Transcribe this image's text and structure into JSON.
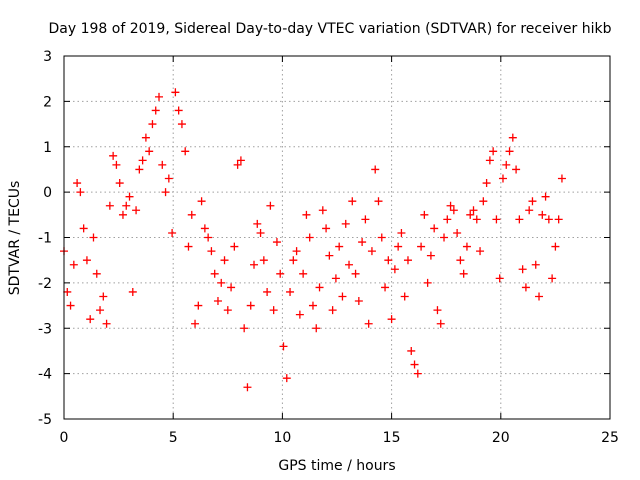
{
  "chart_data": {
    "type": "scatter",
    "title": "Day 198 of 2019, Sidereal Day-to-day VTEC variation (SDTVAR) for receiver hikb",
    "xlabel": "GPS time / hours",
    "ylabel": "SDTVAR / TECUs",
    "xlim": [
      0,
      25
    ],
    "ylim": [
      -5,
      3
    ],
    "xticks": [
      "0",
      "5",
      "10",
      "15",
      "20",
      "25"
    ],
    "yticks": [
      "-5",
      "-4",
      "-3",
      "-2",
      "-1",
      "0",
      "1",
      "2",
      "3"
    ],
    "grid": true,
    "marker": "+",
    "color": "#ff0000",
    "series": [
      {
        "name": "SDTVAR",
        "x": [
          0.0,
          0.15,
          0.3,
          0.45,
          0.6,
          0.75,
          0.9,
          1.05,
          1.2,
          1.35,
          1.5,
          1.65,
          1.8,
          1.95,
          2.1,
          2.25,
          2.4,
          2.55,
          2.7,
          2.85,
          3.0,
          3.15,
          3.3,
          3.45,
          3.6,
          3.75,
          3.9,
          4.05,
          4.2,
          4.35,
          4.5,
          4.65,
          4.8,
          4.95,
          5.1,
          5.25,
          5.4,
          5.55,
          5.7,
          5.85,
          6.0,
          6.15,
          6.3,
          6.45,
          6.6,
          6.75,
          6.9,
          7.05,
          7.2,
          7.35,
          7.5,
          7.65,
          7.8,
          7.95,
          8.1,
          8.25,
          8.4,
          8.55,
          8.7,
          8.85,
          9.0,
          9.15,
          9.3,
          9.45,
          9.6,
          9.75,
          9.9,
          10.05,
          10.2,
          10.35,
          10.5,
          10.65,
          10.8,
          10.95,
          11.1,
          11.25,
          11.4,
          11.55,
          11.7,
          11.85,
          12.0,
          12.15,
          12.3,
          12.45,
          12.6,
          12.75,
          12.9,
          13.05,
          13.2,
          13.35,
          13.5,
          13.65,
          13.8,
          13.95,
          14.1,
          14.25,
          14.4,
          14.55,
          14.7,
          14.85,
          15.0,
          15.15,
          15.3,
          15.45,
          15.6,
          15.75,
          15.9,
          16.05,
          16.2,
          16.35,
          16.5,
          16.65,
          16.8,
          16.95,
          17.1,
          17.25,
          17.4,
          17.55,
          17.7,
          17.85,
          18.0,
          18.15,
          18.3,
          18.45,
          18.6,
          18.75,
          18.9,
          19.05,
          19.2,
          19.35,
          19.5,
          19.65,
          19.8,
          19.95,
          20.1,
          20.25,
          20.4,
          20.55,
          20.7,
          20.85,
          21.0,
          21.15,
          21.3,
          21.45,
          21.6,
          21.75,
          21.9,
          22.05,
          22.2,
          22.35,
          22.5,
          22.65,
          22.8
        ],
        "y": [
          -1.3,
          -2.2,
          -2.5,
          -1.6,
          0.2,
          0.0,
          -0.8,
          -1.5,
          -2.8,
          -1.0,
          -1.8,
          -2.6,
          -2.3,
          -2.9,
          -0.3,
          0.8,
          0.6,
          0.2,
          -0.5,
          -0.3,
          -0.1,
          -2.2,
          -0.4,
          0.5,
          0.7,
          1.2,
          0.9,
          1.5,
          1.8,
          2.1,
          0.6,
          0.0,
          0.3,
          -0.9,
          2.2,
          1.8,
          1.5,
          0.9,
          -1.2,
          -0.5,
          -2.9,
          -2.5,
          -0.2,
          -0.8,
          -1.0,
          -1.3,
          -1.8,
          -2.4,
          -2.0,
          -1.5,
          -2.6,
          -2.1,
          -1.2,
          0.6,
          0.7,
          -3.0,
          -4.3,
          -2.5,
          -1.6,
          -0.7,
          -0.9,
          -1.5,
          -2.2,
          -0.3,
          -2.6,
          -1.1,
          -1.8,
          -3.4,
          -4.1,
          -2.2,
          -1.5,
          -1.3,
          -2.7,
          -1.8,
          -0.5,
          -1.0,
          -2.5,
          -3.0,
          -2.1,
          -0.4,
          -0.8,
          -1.4,
          -2.6,
          -1.9,
          -1.2,
          -2.3,
          -0.7,
          -1.6,
          -0.2,
          -1.8,
          -2.4,
          -1.1,
          -0.6,
          -2.9,
          -1.3,
          0.5,
          -0.2,
          -1.0,
          -2.1,
          -1.5,
          -2.8,
          -1.7,
          -1.2,
          -0.9,
          -2.3,
          -1.5,
          -3.5,
          -3.8,
          -4.0,
          -1.2,
          -0.5,
          -2.0,
          -1.4,
          -0.8,
          -2.6,
          -2.9,
          -1.0,
          -0.6,
          -0.3,
          -0.4,
          -0.9,
          -1.5,
          -1.8,
          -1.2,
          -0.5,
          -0.4,
          -0.6,
          -1.3,
          -0.2,
          0.2,
          0.7,
          0.9,
          -0.6,
          -1.9,
          0.3,
          0.6,
          0.9,
          1.2,
          0.5,
          -0.6,
          -1.7,
          -2.1,
          -0.4,
          -0.2,
          -1.6,
          -2.3,
          -0.5,
          -0.1,
          -0.6,
          -1.9,
          -1.2,
          -0.6,
          0.3
        ]
      }
    ]
  }
}
